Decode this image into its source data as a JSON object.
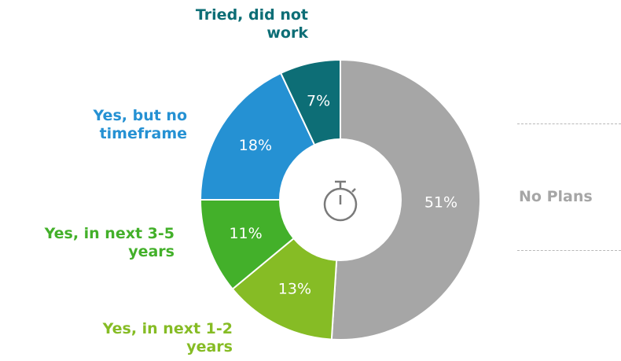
{
  "chart_data": {
    "type": "pie",
    "donut": true,
    "categories": [
      "No Plans",
      "Yes, in next 1-2 years",
      "Yes, in next 3-5 years",
      "Yes, but no timeframe",
      "Tried, did not work"
    ],
    "values": [
      51,
      13,
      11,
      18,
      7
    ],
    "value_labels": [
      "51%",
      "13%",
      "11%",
      "18%",
      "7%"
    ],
    "colors": [
      "#a6a6a6",
      "#86bc25",
      "#43b02a",
      "#2591d3",
      "#0d6e76"
    ],
    "center_icon": "stopwatch-icon",
    "title": "",
    "legend": "none"
  },
  "labels": {
    "no_plans": "No Plans",
    "yes_1_2": "Yes, in next 1-2\nyears",
    "yes_3_5": "Yes, in next 3-5\nyears",
    "no_timeframe": "Yes, but no\ntimeframe",
    "tried": "Tried, did not\nwork"
  }
}
